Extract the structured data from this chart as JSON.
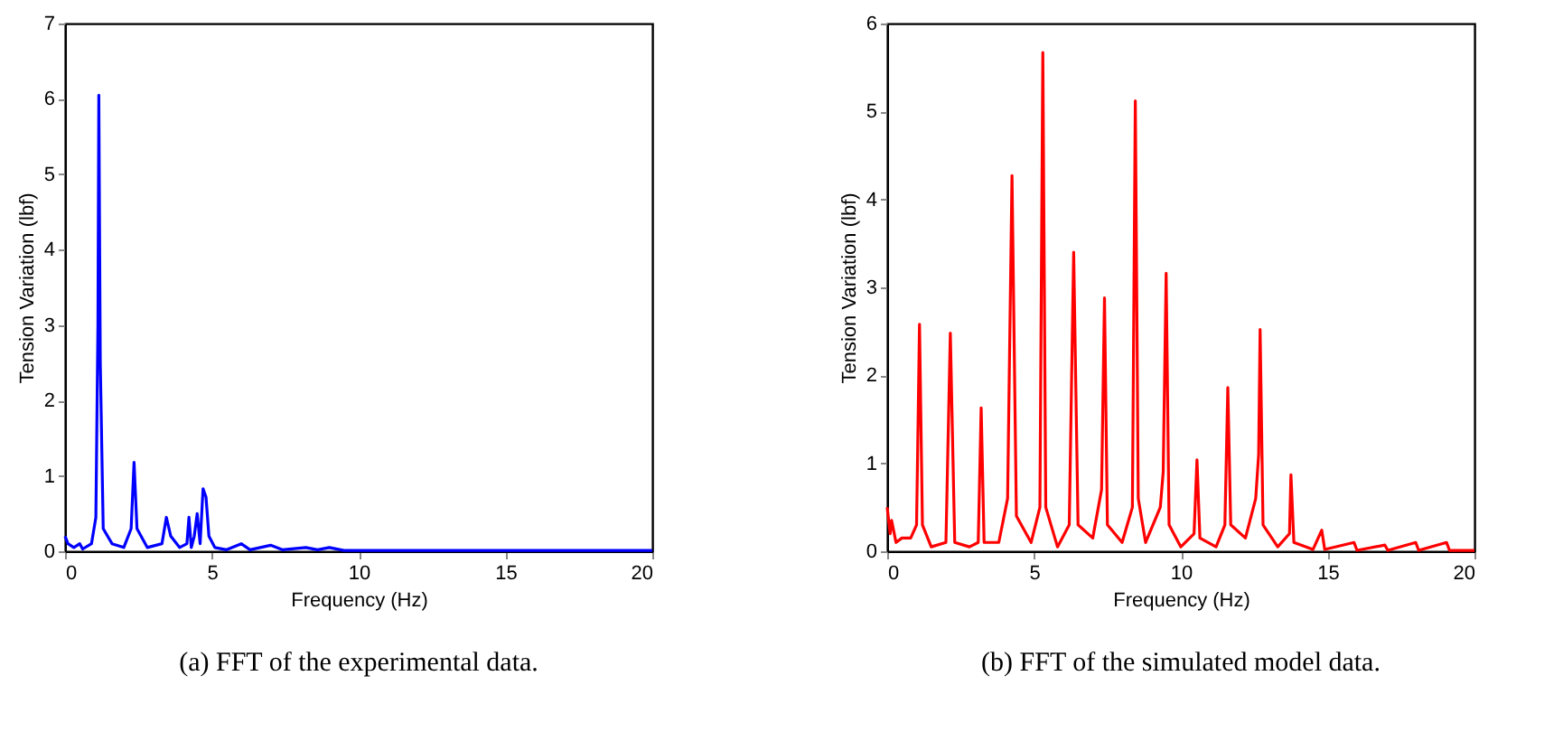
{
  "chart_data": [
    {
      "type": "line",
      "xlabel": "Frequency (Hz)",
      "ylabel": "Tension Variation (lbf)",
      "annotations": [
        "(a)  FFT of the experimental data."
      ],
      "xlim": [
        0,
        20
      ],
      "xticks": [
        0,
        5,
        10,
        15,
        20
      ],
      "ylim": [
        0,
        7
      ],
      "yticks": [
        0,
        1,
        2,
        3,
        4,
        5,
        6,
        7
      ],
      "grid": false,
      "series": [
        {
          "color": "#0000ff",
          "x": [
            0,
            0.1,
            0.3,
            0.5,
            0.6,
            0.9,
            1.05,
            1.12,
            1.15,
            1.2,
            1.3,
            1.6,
            2.0,
            2.25,
            2.35,
            2.45,
            2.8,
            3.3,
            3.45,
            3.6,
            3.9,
            4.15,
            4.22,
            4.3,
            4.4,
            4.5,
            4.6,
            4.7,
            4.8,
            4.9,
            5.1,
            5.5,
            6.0,
            6.3,
            7.0,
            7.4,
            8.2,
            8.6,
            9.0,
            9.5,
            12,
            16,
            20
          ],
          "values": [
            0.2,
            0.1,
            0.05,
            0.1,
            0.03,
            0.1,
            0.45,
            3,
            6.05,
            2.5,
            0.3,
            0.1,
            0.05,
            0.3,
            1.18,
            0.3,
            0.05,
            0.1,
            0.45,
            0.2,
            0.05,
            0.1,
            0.45,
            0.05,
            0.2,
            0.5,
            0.1,
            0.83,
            0.72,
            0.2,
            0.05,
            0.02,
            0.1,
            0.02,
            0.08,
            0.02,
            0.05,
            0.02,
            0.05,
            0.01,
            0.01,
            0.01,
            0.01
          ]
        }
      ]
    },
    {
      "type": "line",
      "xlabel": "Frequency (Hz)",
      "ylabel": "Tension Variation (lbf)",
      "annotations": [
        "(b)  FFT of the simulated model data."
      ],
      "xlim": [
        0,
        20
      ],
      "xticks": [
        0,
        5,
        10,
        15,
        20
      ],
      "ylim": [
        0,
        6
      ],
      "yticks": [
        0,
        1,
        2,
        3,
        4,
        5,
        6
      ],
      "grid": false,
      "series": [
        {
          "color": "#ff0000",
          "x": [
            0,
            0.1,
            0.15,
            0.3,
            0.5,
            0.8,
            1.0,
            1.1,
            1.2,
            1.5,
            2.0,
            2.15,
            2.3,
            2.8,
            3.1,
            3.2,
            3.3,
            3.8,
            4.1,
            4.25,
            4.4,
            4.9,
            5.2,
            5.3,
            5.4,
            5.8,
            6.2,
            6.35,
            6.5,
            7.0,
            7.3,
            7.4,
            7.5,
            8.0,
            8.35,
            8.45,
            8.55,
            8.8,
            9.3,
            9.4,
            9.5,
            9.6,
            10.0,
            10.45,
            10.55,
            10.65,
            11.2,
            11.5,
            11.6,
            11.7,
            12.2,
            12.55,
            12.65,
            12.7,
            12.8,
            13.3,
            13.7,
            13.75,
            13.85,
            14.5,
            14.8,
            14.9,
            15.9,
            16.0,
            16.95,
            17.05,
            18.0,
            18.1,
            19.05,
            19.15,
            20
          ],
          "values": [
            0.5,
            0.2,
            0.35,
            0.1,
            0.15,
            0.15,
            0.3,
            2.58,
            0.3,
            0.05,
            0.1,
            2.48,
            0.1,
            0.05,
            0.1,
            1.63,
            0.1,
            0.1,
            0.6,
            4.27,
            0.4,
            0.1,
            0.5,
            5.67,
            0.5,
            0.05,
            0.3,
            3.4,
            0.3,
            0.15,
            0.7,
            2.88,
            0.3,
            0.1,
            0.5,
            5.12,
            0.6,
            0.1,
            0.5,
            0.9,
            3.16,
            0.3,
            0.05,
            0.2,
            1.04,
            0.15,
            0.05,
            0.3,
            1.86,
            0.3,
            0.15,
            0.6,
            1.1,
            2.52,
            0.3,
            0.05,
            0.2,
            0.87,
            0.1,
            0.02,
            0.24,
            0.02,
            0.1,
            0.01,
            0.07,
            0.01,
            0.1,
            0.01,
            0.1,
            0.01,
            0.01
          ]
        }
      ]
    }
  ]
}
